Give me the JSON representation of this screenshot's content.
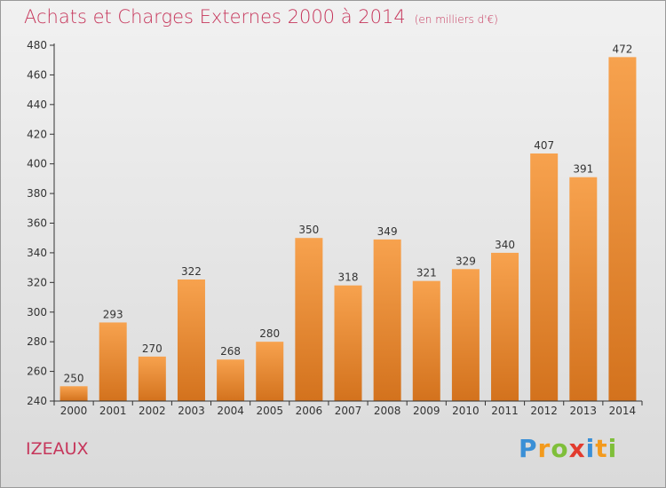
{
  "chart_data": {
    "type": "bar",
    "title": "Achats et Charges Externes 2000 à 2014",
    "unit_note": "(en milliers d'€)",
    "categories": [
      "2000",
      "2001",
      "2002",
      "2003",
      "2004",
      "2005",
      "2006",
      "2007",
      "2008",
      "2009",
      "2010",
      "2011",
      "2012",
      "2013",
      "2014"
    ],
    "values": [
      250,
      293,
      270,
      322,
      268,
      280,
      350,
      318,
      349,
      321,
      329,
      340,
      407,
      391,
      472
    ],
    "ylim": [
      240,
      480
    ],
    "yticks": [
      240,
      260,
      280,
      300,
      320,
      340,
      360,
      380,
      400,
      420,
      440,
      460,
      480
    ],
    "grid": false,
    "data_labels": true,
    "bar_color_top": "#f7a24e",
    "bar_color_bottom": "#d3721d",
    "axis_color": "#333333"
  },
  "footer": {
    "place": "IZEAUX",
    "brand_letters": [
      {
        "ch": "P",
        "color": "#3a8fd6"
      },
      {
        "ch": "r",
        "color": "#f39a1d"
      },
      {
        "ch": "o",
        "color": "#7fbf3a"
      },
      {
        "ch": "x",
        "color": "#e23b2e"
      },
      {
        "ch": "i",
        "color": "#3a8fd6"
      },
      {
        "ch": "t",
        "color": "#f39a1d"
      },
      {
        "ch": "i",
        "color": "#7fbf3a"
      }
    ]
  },
  "colors": {
    "title": "#c6365b",
    "background_top": "#f1f1f1",
    "background_bottom": "#dadada"
  }
}
